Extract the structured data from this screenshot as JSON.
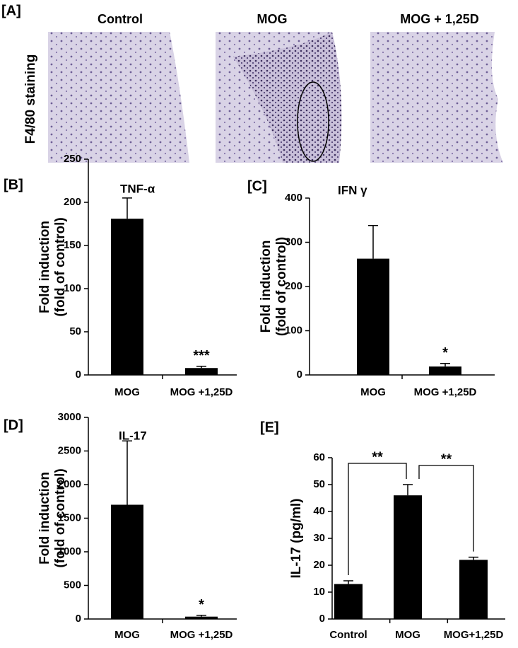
{
  "panel_a": {
    "label": "[A]",
    "ylabel": "F4/80 staining",
    "images": [
      "Control",
      "MOG",
      "MOG + 1,25D"
    ]
  },
  "chart_data": [
    {
      "type": "bar",
      "panel_label": "[B]",
      "title": "TNF-α",
      "ylabel": [
        "Fold induction",
        "(fold of control)"
      ],
      "categories": [
        "MOG",
        "MOG +1,25D"
      ],
      "values": [
        181,
        8
      ],
      "errors": [
        24,
        2
      ],
      "color": "#000000",
      "ylim": [
        0,
        250
      ],
      "yticks": [
        0,
        50,
        100,
        150,
        200,
        250
      ],
      "annotations": [
        {
          "text": "***",
          "category": 1
        }
      ]
    },
    {
      "type": "bar",
      "panel_label": "[C]",
      "title": "IFN γ",
      "ylabel": [
        "Fold induction",
        "(fold of control)"
      ],
      "categories": [
        "MOG",
        "MOG +1,25D"
      ],
      "values": [
        263,
        19
      ],
      "errors": [
        75,
        7
      ],
      "color": "#000000",
      "ylim": [
        0,
        400
      ],
      "yticks": [
        0,
        100,
        200,
        300,
        400
      ],
      "annotations": [
        {
          "text": "*",
          "category": 1
        }
      ]
    },
    {
      "type": "bar",
      "panel_label": "[D]",
      "title": "IL-17",
      "ylabel": [
        "Fold induction",
        "(fold of control)"
      ],
      "categories": [
        "MOG",
        "MOG +1,25D"
      ],
      "values": [
        1700,
        35
      ],
      "errors": [
        950,
        20
      ],
      "color": "#000000",
      "ylim": [
        0,
        3000
      ],
      "yticks": [
        0,
        500,
        1000,
        1500,
        2000,
        2500,
        3000
      ],
      "annotations": [
        {
          "text": "*",
          "category": 1
        }
      ]
    },
    {
      "type": "bar",
      "panel_label": "[E]",
      "ylabel": [
        "IL-17 (pg/ml)"
      ],
      "categories": [
        "Control",
        "MOG",
        "MOG+1,25D"
      ],
      "values": [
        13,
        46,
        22
      ],
      "errors": [
        1.2,
        4,
        1
      ],
      "color": "#000000",
      "ylim": [
        0,
        60
      ],
      "yticks": [
        0,
        10,
        20,
        30,
        40,
        50,
        60
      ],
      "brackets": [
        {
          "text": "**",
          "from": 0,
          "to": 1
        },
        {
          "text": "**",
          "from": 1,
          "to": 2
        }
      ]
    }
  ]
}
